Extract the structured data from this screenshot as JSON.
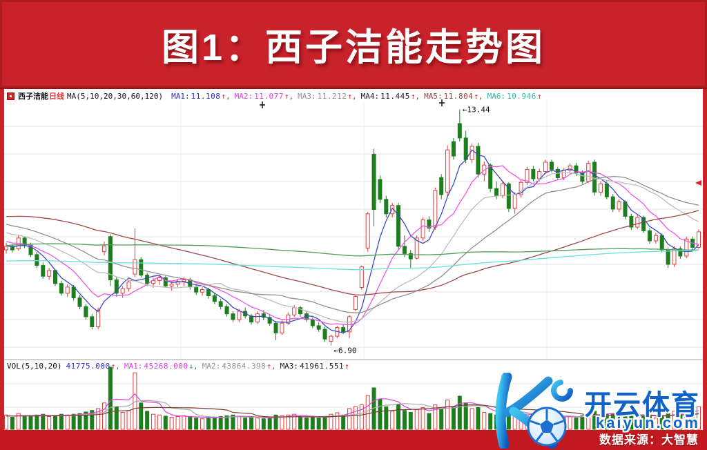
{
  "banner": {
    "title": "图1：西子洁能走势图"
  },
  "indicator": {
    "stock_name": "西子洁能",
    "period": "日线",
    "ma_header": "MA(5,10,20,30,60,120)",
    "items": [
      {
        "label": "MA1:",
        "value": "11.108",
        "arrow": "↑",
        "sep": ",",
        "color": "#2a2ad0",
        "arrow_color": "#e02020"
      },
      {
        "label": "MA2:",
        "value": "11.077",
        "arrow": "↑",
        "sep": ",",
        "color": "#e03ce0",
        "arrow_color": "#e02020"
      },
      {
        "label": "MA3:",
        "value": "11.212",
        "arrow": "↑",
        "sep": ",",
        "color": "#909090",
        "arrow_color": "#e02020"
      },
      {
        "label": "MA4:",
        "value": "11.445",
        "arrow": "↑",
        "sep": ",",
        "color": "#1b1b1b",
        "arrow_color": "#e02020"
      },
      {
        "label": "MA5:",
        "value": "11.804",
        "arrow": "↑",
        "sep": ",",
        "color": "#9a3c3c",
        "arrow_color": "#e02020"
      },
      {
        "label": "MA6:",
        "value": "10.946",
        "arrow": "↑",
        "sep": "",
        "color": "#2fb9a5",
        "arrow_color": "#e02020"
      }
    ]
  },
  "volume_indicator": {
    "header": "VOL(5,10,20)",
    "value": "41775.000",
    "value_arrow": "↑",
    "value_sep": ",",
    "value_color": "#2a2ad0",
    "items": [
      {
        "label": "MA1:",
        "value": "45268.000",
        "arrow": "↓",
        "sep": ",",
        "color": "#e03ce0",
        "arrow_color": "#1c8a1c"
      },
      {
        "label": "MA2:",
        "value": "43864.398",
        "arrow": "↑",
        "sep": ",",
        "color": "#909090",
        "arrow_color": "#e02020"
      },
      {
        "label": "MA3:",
        "value": "41961.551",
        "arrow": "↑",
        "sep": "",
        "color": "#1b1b1b",
        "arrow_color": "#e02020"
      }
    ]
  },
  "watermark": {
    "brand": "开云体育",
    "domain": "kaiyun.com",
    "source": "数据来源：大智慧",
    "brand_color": "#0f63c8"
  },
  "chart_data": {
    "type": "candlestick",
    "title": "西子洁能 daily candlestick with volume",
    "price_axis_range": [
      6.55,
      13.7
    ],
    "grid": true,
    "up_color": "#e23c3c",
    "down_color": "#1e7e1e",
    "annotations": [
      {
        "index": 74,
        "text": "←13.44",
        "pos": "above"
      },
      {
        "index": 53,
        "text": "←6.90",
        "pos": "below"
      }
    ],
    "cursor_marks": [
      [
        380,
        152
      ],
      [
        640,
        149
      ]
    ],
    "edge_tick_y": 265,
    "ma_windows": [
      5,
      10,
      20,
      30,
      60,
      120,
      250
    ],
    "ma_colors": [
      "#3a49c0",
      "#f054e6",
      "#bcbcbc",
      "#8e8e8e",
      "#9e4848",
      "#4f9d57",
      "#63e3e0"
    ],
    "vol_ma_windows": [
      5,
      10,
      20
    ],
    "vol_ma_colors": [
      "#e03ce0",
      "#a8a8a8",
      "#7a3b2f"
    ],
    "history_closes_segments": [
      {
        "from": 8.1,
        "to": 8.7,
        "n": 60
      },
      {
        "from": 8.5,
        "to": 9.2,
        "n": 60
      },
      {
        "from": 9.5,
        "to": 11.3,
        "n": 20
      },
      {
        "from": 11.3,
        "to": 10.6,
        "n": 20
      },
      {
        "from": 10.55,
        "to": 9.6,
        "n": 20
      }
    ],
    "history_volume": {
      "value": 35000,
      "n": 30
    },
    "candles": [
      [
        9.55,
        9.75,
        9.45,
        9.65,
        38000
      ],
      [
        9.65,
        9.72,
        9.48,
        9.55,
        32000
      ],
      [
        9.58,
        9.95,
        9.52,
        9.88,
        42000
      ],
      [
        9.88,
        9.92,
        9.6,
        9.68,
        35000
      ],
      [
        9.68,
        9.75,
        9.35,
        9.42,
        36000
      ],
      [
        9.42,
        9.5,
        9.05,
        9.12,
        38000
      ],
      [
        9.12,
        9.2,
        8.75,
        8.82,
        40000
      ],
      [
        8.82,
        9.05,
        8.72,
        8.98,
        34000
      ],
      [
        8.98,
        9.02,
        8.55,
        8.62,
        36000
      ],
      [
        8.62,
        8.7,
        8.28,
        8.35,
        40000
      ],
      [
        8.35,
        8.6,
        8.25,
        8.52,
        38000
      ],
      [
        8.52,
        8.58,
        8.15,
        8.22,
        40000
      ],
      [
        8.22,
        8.3,
        7.9,
        7.98,
        42000
      ],
      [
        7.98,
        8.05,
        7.62,
        7.7,
        46000
      ],
      [
        7.7,
        7.78,
        7.35,
        7.42,
        50000
      ],
      [
        7.42,
        7.95,
        7.35,
        7.88,
        55000
      ],
      [
        9.5,
        9.78,
        9.4,
        9.66,
        70000
      ],
      [
        9.92,
        9.98,
        8.55,
        8.72,
        165000
      ],
      [
        8.72,
        8.8,
        8.25,
        8.35,
        60000
      ],
      [
        8.35,
        8.55,
        8.22,
        8.48,
        45000
      ],
      [
        8.48,
        8.72,
        8.4,
        8.66,
        50000
      ],
      [
        8.88,
        10.15,
        8.8,
        9.28,
        150000
      ],
      [
        9.28,
        9.35,
        8.78,
        8.85,
        70000
      ],
      [
        8.85,
        8.92,
        8.55,
        8.62,
        48000
      ],
      [
        8.62,
        8.78,
        8.5,
        8.7,
        40000
      ],
      [
        8.7,
        8.85,
        8.58,
        8.78,
        38000
      ],
      [
        8.78,
        8.82,
        8.5,
        8.55,
        35000
      ],
      [
        8.55,
        8.68,
        8.42,
        8.6,
        32000
      ],
      [
        8.6,
        8.75,
        8.52,
        8.68,
        34000
      ],
      [
        8.68,
        8.8,
        8.55,
        8.72,
        36000
      ],
      [
        8.72,
        8.78,
        8.45,
        8.52,
        33000
      ],
      [
        8.52,
        8.6,
        8.3,
        8.38,
        30000
      ],
      [
        8.38,
        8.52,
        8.28,
        8.45,
        28000
      ],
      [
        8.45,
        8.5,
        8.2,
        8.28,
        30000
      ],
      [
        8.28,
        8.35,
        8.05,
        8.12,
        32000
      ],
      [
        8.12,
        8.2,
        7.9,
        7.98,
        34000
      ],
      [
        7.98,
        8.05,
        7.7,
        7.78,
        36000
      ],
      [
        7.78,
        7.85,
        7.55,
        7.62,
        38000
      ],
      [
        7.62,
        7.92,
        7.55,
        7.85,
        34000
      ],
      [
        7.85,
        7.95,
        7.65,
        7.72,
        30000
      ],
      [
        7.72,
        7.78,
        7.48,
        7.55,
        32000
      ],
      [
        7.55,
        7.85,
        7.5,
        7.78,
        30000
      ],
      [
        7.78,
        7.88,
        7.6,
        7.68,
        28000
      ],
      [
        7.68,
        7.75,
        7.45,
        7.52,
        30000
      ],
      [
        7.52,
        7.58,
        7.05,
        7.25,
        38000
      ],
      [
        7.25,
        7.6,
        7.2,
        7.52,
        36000
      ],
      [
        7.52,
        7.82,
        7.48,
        7.75,
        38000
      ],
      [
        7.75,
        8.02,
        7.7,
        7.95,
        40000
      ],
      [
        7.95,
        8.0,
        7.7,
        7.78,
        34000
      ],
      [
        7.78,
        7.85,
        7.55,
        7.62,
        30000
      ],
      [
        7.62,
        7.68,
        7.38,
        7.45,
        32000
      ],
      [
        7.45,
        7.55,
        7.28,
        7.35,
        30000
      ],
      [
        7.35,
        7.42,
        7.0,
        7.08,
        34000
      ],
      [
        7.02,
        7.2,
        6.9,
        7.16,
        40000
      ],
      [
        7.16,
        7.45,
        7.1,
        7.4,
        44000
      ],
      [
        7.4,
        7.48,
        7.22,
        7.28,
        38000
      ],
      [
        7.28,
        7.75,
        7.1,
        7.7,
        55000
      ],
      [
        7.9,
        8.3,
        7.85,
        8.26,
        60000
      ],
      [
        8.51,
        9.12,
        8.45,
        9.08,
        65000
      ],
      [
        9.6,
        10.6,
        9.5,
        10.55,
        90000
      ],
      [
        12.2,
        12.35,
        10.2,
        10.67,
        110000
      ],
      [
        11.5,
        11.62,
        10.85,
        10.95,
        80000
      ],
      [
        10.95,
        11.05,
        10.45,
        10.55,
        60000
      ],
      [
        10.55,
        10.85,
        10.45,
        10.78,
        48000
      ],
      [
        10.78,
        10.85,
        9.55,
        9.65,
        66000
      ],
      [
        9.65,
        9.95,
        9.35,
        9.45,
        50000
      ],
      [
        9.45,
        9.55,
        9.05,
        9.3,
        45000
      ],
      [
        9.32,
        9.95,
        9.28,
        9.88,
        52000
      ],
      [
        9.88,
        10.45,
        9.8,
        10.38,
        58000
      ],
      [
        10.38,
        10.48,
        10.05,
        10.15,
        42000
      ],
      [
        10.18,
        11.28,
        10.1,
        11.2,
        65000
      ],
      [
        11.55,
        11.65,
        10.95,
        11.08,
        55000
      ],
      [
        11.15,
        12.45,
        11.05,
        12.32,
        78000
      ],
      [
        12.55,
        12.65,
        12.05,
        12.15,
        60000
      ],
      [
        13.05,
        13.44,
        12.55,
        12.65,
        88000
      ],
      [
        12.65,
        12.85,
        11.95,
        12.05,
        70000
      ],
      [
        12.05,
        12.5,
        11.95,
        12.42,
        55000
      ],
      [
        12.42,
        12.52,
        11.55,
        11.65,
        58000
      ],
      [
        11.65,
        12.0,
        11.45,
        11.9,
        45000
      ],
      [
        11.9,
        11.95,
        11.15,
        11.25,
        42000
      ],
      [
        11.25,
        11.45,
        10.95,
        11.05,
        38000
      ],
      [
        11.05,
        11.45,
        10.98,
        11.38,
        40000
      ],
      [
        11.38,
        11.42,
        10.6,
        10.7,
        44000
      ],
      [
        10.7,
        11.15,
        10.55,
        11.08,
        40000
      ],
      [
        11.08,
        11.5,
        11.0,
        11.42,
        42000
      ],
      [
        11.42,
        11.85,
        11.35,
        11.78,
        36000
      ],
      [
        11.78,
        11.88,
        11.45,
        11.52,
        34000
      ],
      [
        11.52,
        11.8,
        11.45,
        11.72,
        32000
      ],
      [
        11.72,
        12.05,
        11.65,
        11.98,
        36000
      ],
      [
        11.98,
        12.05,
        11.7,
        11.78,
        33000
      ],
      [
        11.78,
        11.85,
        11.48,
        11.55,
        35000
      ],
      [
        11.55,
        11.82,
        11.48,
        11.76,
        31000
      ],
      [
        11.76,
        11.95,
        11.66,
        11.88,
        34000
      ],
      [
        11.88,
        11.96,
        11.6,
        11.68,
        30000
      ],
      [
        11.68,
        11.75,
        11.38,
        11.45,
        36000
      ],
      [
        11.45,
        12.02,
        11.4,
        11.95,
        44000
      ],
      [
        11.98,
        12.05,
        11.05,
        11.15,
        48000
      ],
      [
        11.15,
        11.45,
        11.05,
        11.38,
        36000
      ],
      [
        11.38,
        11.45,
        10.95,
        11.02,
        40000
      ],
      [
        11.02,
        11.1,
        10.6,
        10.68,
        42000
      ],
      [
        10.68,
        10.95,
        10.6,
        10.88,
        34000
      ],
      [
        10.88,
        10.92,
        10.4,
        10.48,
        38000
      ],
      [
        10.48,
        10.55,
        10.1,
        10.18,
        40000
      ],
      [
        10.18,
        10.52,
        10.12,
        10.45,
        32000
      ],
      [
        10.45,
        10.5,
        10.02,
        10.08,
        36000
      ],
      [
        10.08,
        10.15,
        9.72,
        9.8,
        38000
      ],
      [
        9.8,
        10.02,
        9.72,
        9.95,
        30000
      ],
      [
        9.95,
        10.0,
        9.48,
        9.55,
        36000
      ],
      [
        9.55,
        9.62,
        9.05,
        9.15,
        42000
      ],
      [
        9.15,
        9.65,
        9.08,
        9.58,
        48000
      ],
      [
        9.58,
        9.65,
        9.3,
        9.38,
        40000
      ],
      [
        9.38,
        9.92,
        9.32,
        9.85,
        55000
      ],
      [
        9.85,
        9.92,
        9.55,
        9.62,
        45000
      ],
      [
        9.62,
        10.12,
        9.58,
        10.05,
        60000
      ]
    ]
  }
}
